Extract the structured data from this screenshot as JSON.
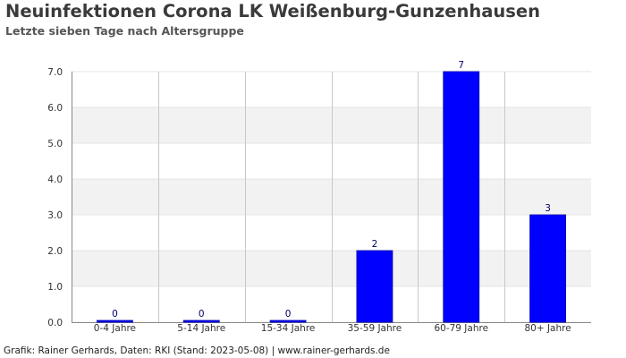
{
  "header": {
    "title": "Neuinfektionen Corona LK Weißenburg-Gunzenhausen",
    "subtitle": "Letzte sieben Tage nach Altersgruppe"
  },
  "footer": {
    "source": "Grafik: Rainer Gerhards, Daten: RKI (Stand: 2023-05-08) | www.rainer-gerhards.de"
  },
  "colors": {
    "bar": "#0000ff",
    "band": "#f2f2f2",
    "grid": "#c8c8c8",
    "axis": "#888888",
    "label": "#333333",
    "value_label": "#000066"
  },
  "chart_data": {
    "type": "bar",
    "categories": [
      "0-4 Jahre",
      "5-14 Jahre",
      "15-34 Jahre",
      "35-59 Jahre",
      "60-79 Jahre",
      "80+ Jahre"
    ],
    "values": [
      0,
      0,
      0,
      2,
      7,
      3
    ],
    "ylim": [
      0,
      7
    ],
    "yticks": [
      "0.0",
      "1.0",
      "2.0",
      "3.0",
      "4.0",
      "5.0",
      "6.0",
      "7.0"
    ],
    "title": "Neuinfektionen Corona LK Weißenburg-Gunzenhausen",
    "subtitle": "Letzte sieben Tage nach Altersgruppe",
    "grid": true,
    "alternating_bands": true,
    "data_labels": true
  }
}
